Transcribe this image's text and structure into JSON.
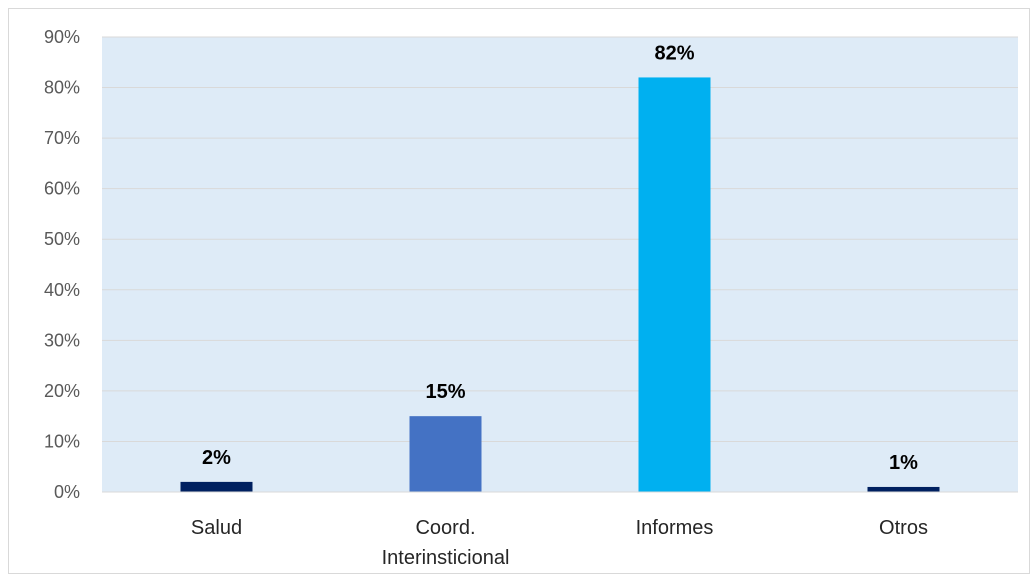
{
  "chart_data": {
    "type": "bar",
    "categories": [
      "Salud",
      "Coord. Interinsticional",
      "Informes",
      "Otros"
    ],
    "category_lines": [
      [
        "Salud"
      ],
      [
        "Coord.",
        "Interinsticional"
      ],
      [
        "Informes"
      ],
      [
        "Otros"
      ]
    ],
    "values": [
      2,
      15,
      82,
      1
    ],
    "data_labels": [
      "2%",
      "15%",
      "82%",
      "1%"
    ],
    "bar_colors": [
      "#002060",
      "#4472C4",
      "#00B0F0",
      "#002060"
    ],
    "ylim": [
      0,
      90
    ],
    "y_ticks": [
      0,
      10,
      20,
      30,
      40,
      50,
      60,
      70,
      80,
      90
    ],
    "y_tick_labels": [
      "0%",
      "10%",
      "20%",
      "30%",
      "40%",
      "50%",
      "60%",
      "70%",
      "80%",
      "90%"
    ],
    "grid": true,
    "plot_background": "#DEEBF7",
    "gridline_color": "#D9D9D9",
    "title": "",
    "xlabel": "",
    "ylabel": ""
  }
}
